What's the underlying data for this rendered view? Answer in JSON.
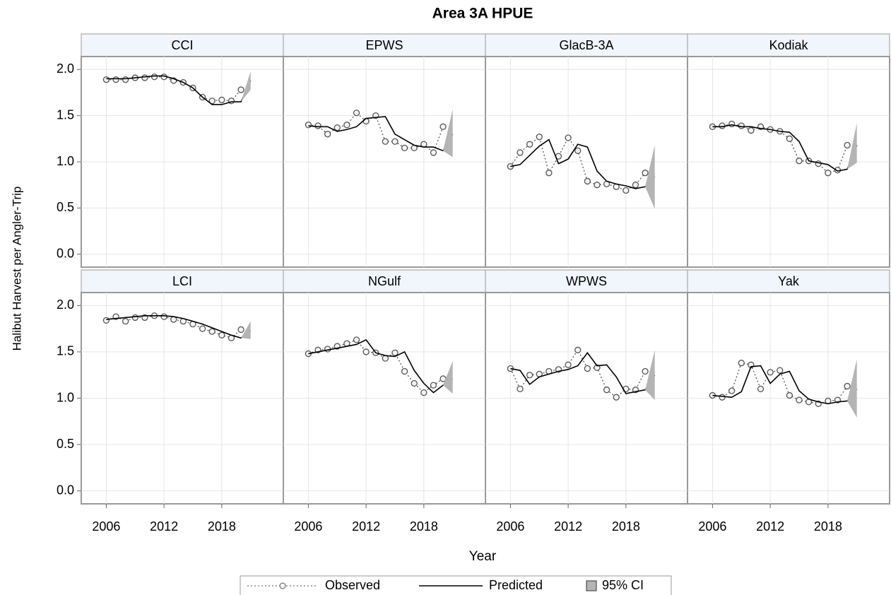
{
  "chart_data": {
    "type": "line",
    "title": "Area 3A HPUE",
    "xlabel": "Year",
    "ylabel": "Halibut Harvest per Angler-Trip",
    "x": [
      2006,
      2007,
      2008,
      2009,
      2010,
      2011,
      2012,
      2013,
      2014,
      2015,
      2016,
      2017,
      2018,
      2019,
      2020,
      2021
    ],
    "xlim": [
      2003.4,
      2024.4
    ],
    "xticks": [
      2006,
      2012,
      2018
    ],
    "ylim": [
      -0.14,
      2.14
    ],
    "yticks": [
      {
        "value": 0,
        "label": "0.0"
      },
      0.5,
      {
        "value": 1,
        "label": "1.0"
      },
      1.5,
      {
        "value": 2,
        "label": "2.0"
      }
    ],
    "grid": true,
    "panels": [
      {
        "title": "CCI",
        "series": [
          {
            "name": "Observed",
            "color": "#555555",
            "values": [
              1.89,
              1.89,
              1.89,
              1.91,
              1.91,
              1.92,
              1.92,
              1.88,
              1.86,
              1.8,
              1.7,
              1.66,
              1.67,
              1.66,
              1.78,
              null
            ]
          },
          {
            "name": "Predicted",
            "color": "#000000",
            "values": [
              1.9,
              1.9,
              1.9,
              1.91,
              1.92,
              1.93,
              1.93,
              1.9,
              1.86,
              1.8,
              1.7,
              1.62,
              1.62,
              1.65,
              1.65,
              1.88
            ]
          },
          {
            "name": "95% CI",
            "color": "#b4b4b4",
            "lower": [
              null,
              null,
              null,
              null,
              null,
              null,
              null,
              null,
              null,
              null,
              null,
              null,
              null,
              null,
              1.65,
              1.78
            ],
            "upper": [
              null,
              null,
              null,
              null,
              null,
              null,
              null,
              null,
              null,
              null,
              null,
              null,
              null,
              null,
              1.65,
              1.98
            ]
          }
        ]
      },
      {
        "title": "EPWS",
        "series": [
          {
            "name": "Observed",
            "color": "#555555",
            "values": [
              1.4,
              1.39,
              1.3,
              1.37,
              1.4,
              1.53,
              1.44,
              1.5,
              1.22,
              1.22,
              1.15,
              1.15,
              1.19,
              1.1,
              1.38,
              null
            ]
          },
          {
            "name": "Predicted",
            "color": "#000000",
            "values": [
              1.39,
              1.38,
              1.38,
              1.33,
              1.35,
              1.38,
              1.47,
              1.48,
              1.49,
              1.3,
              1.24,
              1.18,
              1.16,
              1.16,
              1.12,
              1.3
            ]
          },
          {
            "name": "95% CI",
            "color": "#b4b4b4",
            "lower": [
              null,
              null,
              null,
              null,
              null,
              null,
              null,
              null,
              null,
              null,
              null,
              null,
              null,
              null,
              1.12,
              1.05
            ],
            "upper": [
              null,
              null,
              null,
              null,
              null,
              null,
              null,
              null,
              null,
              null,
              null,
              null,
              null,
              null,
              1.12,
              1.57
            ]
          }
        ]
      },
      {
        "title": "GlacB-3A",
        "series": [
          {
            "name": "Observed",
            "color": "#555555",
            "values": [
              0.95,
              1.1,
              1.19,
              1.27,
              0.88,
              1.06,
              1.26,
              1.12,
              0.79,
              0.75,
              0.76,
              0.73,
              0.69,
              0.75,
              0.88,
              null
            ]
          },
          {
            "name": "Predicted",
            "color": "#000000",
            "values": [
              0.95,
              0.97,
              1.07,
              1.17,
              1.24,
              0.98,
              1.03,
              1.19,
              1.16,
              0.9,
              0.79,
              0.76,
              0.74,
              0.71,
              0.73,
              0.84
            ]
          },
          {
            "name": "95% CI",
            "color": "#b4b4b4",
            "lower": [
              null,
              null,
              null,
              null,
              null,
              null,
              null,
              null,
              null,
              null,
              null,
              null,
              null,
              null,
              0.73,
              0.49
            ],
            "upper": [
              null,
              null,
              null,
              null,
              null,
              null,
              null,
              null,
              null,
              null,
              null,
              null,
              null,
              null,
              0.73,
              1.18
            ]
          }
        ]
      },
      {
        "title": "Kodiak",
        "series": [
          {
            "name": "Observed",
            "color": "#555555",
            "values": [
              1.38,
              1.39,
              1.41,
              1.39,
              1.34,
              1.38,
              1.35,
              1.33,
              1.25,
              1.01,
              1.01,
              0.98,
              0.88,
              0.91,
              1.18,
              null
            ]
          },
          {
            "name": "Predicted",
            "color": "#000000",
            "values": [
              1.38,
              1.38,
              1.4,
              1.38,
              1.38,
              1.36,
              1.35,
              1.33,
              1.32,
              1.22,
              1.01,
              0.99,
              0.97,
              0.9,
              0.92,
              1.18
            ]
          },
          {
            "name": "95% CI",
            "color": "#b4b4b4",
            "lower": [
              null,
              null,
              null,
              null,
              null,
              null,
              null,
              null,
              null,
              null,
              null,
              null,
              null,
              null,
              0.92,
              0.99
            ],
            "upper": [
              null,
              null,
              null,
              null,
              null,
              null,
              null,
              null,
              null,
              null,
              null,
              null,
              null,
              null,
              0.92,
              1.42
            ]
          }
        ]
      },
      {
        "title": "LCI",
        "series": [
          {
            "name": "Observed",
            "color": "#555555",
            "values": [
              1.84,
              1.88,
              1.83,
              1.87,
              1.87,
              1.89,
              1.88,
              1.85,
              1.83,
              1.8,
              1.75,
              1.72,
              1.68,
              1.65,
              1.74,
              null
            ]
          },
          {
            "name": "Predicted",
            "color": "#000000",
            "values": [
              1.85,
              1.86,
              1.87,
              1.88,
              1.89,
              1.89,
              1.89,
              1.88,
              1.86,
              1.83,
              1.8,
              1.76,
              1.72,
              1.68,
              1.65,
              1.73
            ]
          },
          {
            "name": "95% CI",
            "color": "#b4b4b4",
            "lower": [
              null,
              null,
              null,
              null,
              null,
              null,
              null,
              null,
              null,
              null,
              null,
              null,
              null,
              null,
              1.65,
              1.64
            ],
            "upper": [
              null,
              null,
              null,
              null,
              null,
              null,
              null,
              null,
              null,
              null,
              null,
              null,
              null,
              null,
              1.65,
              1.83
            ]
          }
        ]
      },
      {
        "title": "NGulf",
        "series": [
          {
            "name": "Observed",
            "color": "#555555",
            "values": [
              1.48,
              1.52,
              1.53,
              1.56,
              1.59,
              1.63,
              1.5,
              1.49,
              1.43,
              1.49,
              1.29,
              1.16,
              1.06,
              1.14,
              1.21,
              null
            ]
          },
          {
            "name": "Predicted",
            "color": "#000000",
            "values": [
              1.48,
              1.5,
              1.52,
              1.54,
              1.56,
              1.58,
              1.63,
              1.49,
              1.46,
              1.45,
              1.5,
              1.3,
              1.16,
              1.06,
              1.14,
              1.21
            ]
          },
          {
            "name": "95% CI",
            "color": "#b4b4b4",
            "lower": [
              null,
              null,
              null,
              null,
              null,
              null,
              null,
              null,
              null,
              null,
              null,
              null,
              null,
              null,
              1.14,
              1.05
            ],
            "upper": [
              null,
              null,
              null,
              null,
              null,
              null,
              null,
              null,
              null,
              null,
              null,
              null,
              null,
              null,
              1.14,
              1.4
            ]
          }
        ]
      },
      {
        "title": "WPWS",
        "series": [
          {
            "name": "Observed",
            "color": "#555555",
            "values": [
              1.32,
              1.1,
              1.25,
              1.26,
              1.29,
              1.31,
              1.36,
              1.52,
              1.32,
              1.33,
              1.09,
              1.01,
              1.1,
              1.09,
              1.29,
              null
            ]
          },
          {
            "name": "Predicted",
            "color": "#000000",
            "values": [
              1.32,
              1.3,
              1.15,
              1.23,
              1.26,
              1.29,
              1.31,
              1.35,
              1.49,
              1.35,
              1.36,
              1.23,
              1.05,
              1.07,
              1.09,
              1.25
            ]
          },
          {
            "name": "95% CI",
            "color": "#b4b4b4",
            "lower": [
              null,
              null,
              null,
              null,
              null,
              null,
              null,
              null,
              null,
              null,
              null,
              null,
              null,
              null,
              1.09,
              0.98
            ],
            "upper": [
              null,
              null,
              null,
              null,
              null,
              null,
              null,
              null,
              null,
              null,
              null,
              null,
              null,
              null,
              1.09,
              1.52
            ]
          }
        ]
      },
      {
        "title": "Yak",
        "series": [
          {
            "name": "Observed",
            "color": "#555555",
            "values": [
              1.03,
              1.01,
              1.08,
              1.38,
              1.36,
              1.1,
              1.28,
              1.3,
              1.03,
              0.98,
              0.96,
              0.94,
              0.97,
              0.98,
              1.13,
              null
            ]
          },
          {
            "name": "Predicted",
            "color": "#000000",
            "values": [
              1.03,
              1.02,
              1.01,
              1.07,
              1.34,
              1.35,
              1.16,
              1.26,
              1.29,
              1.08,
              0.99,
              0.96,
              0.94,
              0.96,
              0.97,
              1.1
            ]
          },
          {
            "name": "95% CI",
            "color": "#b4b4b4",
            "lower": [
              null,
              null,
              null,
              null,
              null,
              null,
              null,
              null,
              null,
              null,
              null,
              null,
              null,
              null,
              0.97,
              0.79
            ],
            "upper": [
              null,
              null,
              null,
              null,
              null,
              null,
              null,
              null,
              null,
              null,
              null,
              null,
              null,
              null,
              0.97,
              1.42
            ]
          }
        ]
      }
    ]
  }
}
